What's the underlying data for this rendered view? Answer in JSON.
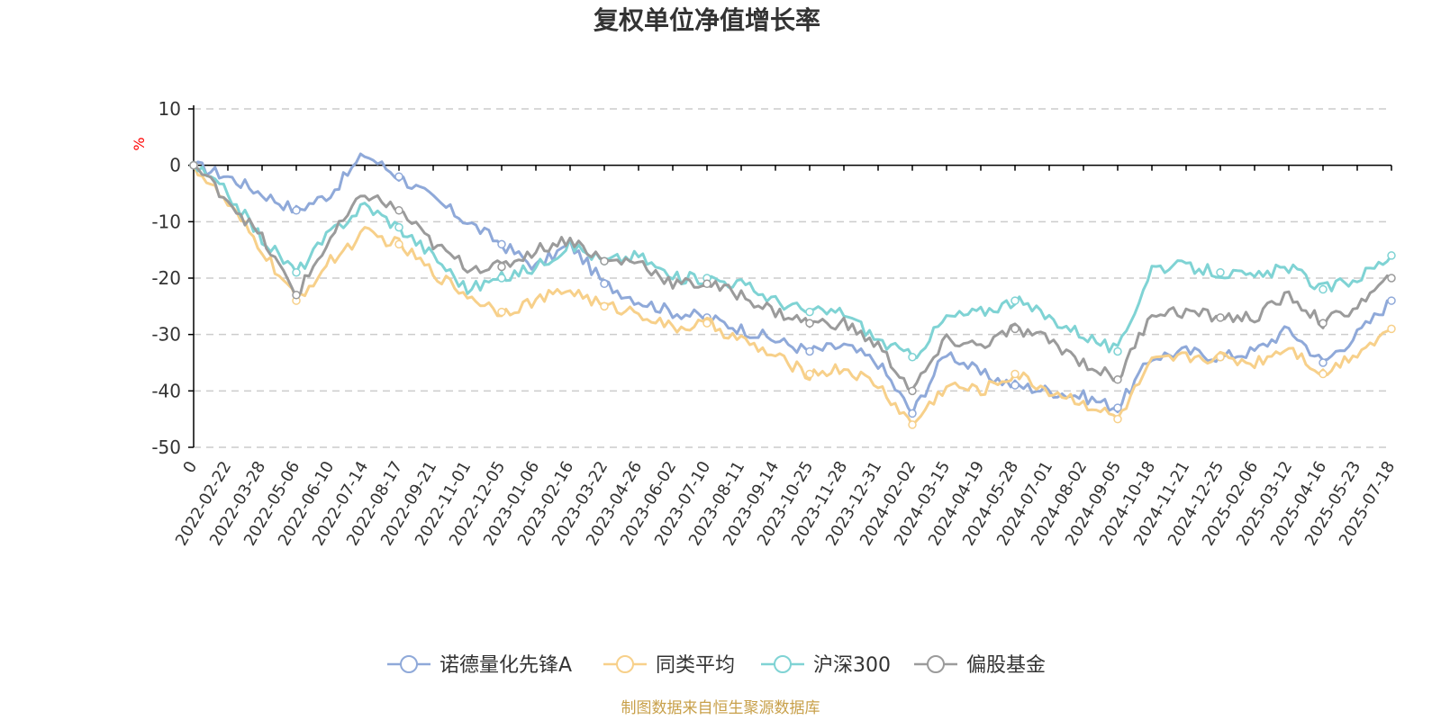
{
  "chart_data": {
    "type": "line",
    "title": "复权单位净值增长率",
    "ylabel": "%",
    "xlabel": "",
    "ylim": [
      -50,
      10
    ],
    "yticks": [
      10,
      0,
      -10,
      -20,
      -30,
      -40,
      -50
    ],
    "grid": true,
    "legend_position": "bottom",
    "source": "制图数据来自恒生聚源数据库",
    "categories": [
      "0",
      "2022-02-22",
      "2022-03-28",
      "2022-05-06",
      "2022-06-10",
      "2022-07-14",
      "2022-08-17",
      "2022-09-21",
      "2022-11-01",
      "2022-12-05",
      "2023-01-06",
      "2023-02-16",
      "2023-03-22",
      "2023-04-26",
      "2023-06-02",
      "2023-07-10",
      "2023-08-11",
      "2023-09-14",
      "2023-10-25",
      "2023-11-28",
      "2023-12-31",
      "2024-02-02",
      "2024-03-15",
      "2024-04-19",
      "2024-05-28",
      "2024-07-01",
      "2024-08-02",
      "2024-09-05",
      "2024-10-18",
      "2024-11-21",
      "2024-12-25",
      "2025-02-06",
      "2025-03-12",
      "2025-04-16",
      "2025-05-23",
      "2025-07-18"
    ],
    "series": [
      {
        "name": "诺德量化先锋A",
        "color": "#8fa9d9",
        "values": [
          0,
          -2,
          -5,
          -8,
          -5,
          2,
          -2,
          -6,
          -10,
          -14,
          -18,
          -14,
          -21,
          -24,
          -26,
          -27,
          -29,
          -31,
          -33,
          -32,
          -35,
          -44,
          -33,
          -37,
          -39,
          -40,
          -41,
          -43,
          -34,
          -33,
          -34,
          -33,
          -29,
          -35,
          -30,
          -24
        ]
      },
      {
        "name": "同类平均",
        "color": "#f7d08a",
        "values": [
          0,
          -7,
          -15,
          -24,
          -17,
          -12,
          -14,
          -19,
          -23,
          -26,
          -24,
          -22,
          -25,
          -26,
          -29,
          -28,
          -31,
          -34,
          -37,
          -36,
          -39,
          -46,
          -39,
          -40,
          -37,
          -40,
          -42,
          -45,
          -35,
          -34,
          -34,
          -35,
          -32,
          -37,
          -33,
          -29
        ]
      },
      {
        "name": "沪深300",
        "color": "#7fd3d4",
        "values": [
          0,
          -5,
          -13,
          -19,
          -12,
          -7,
          -11,
          -16,
          -22,
          -20,
          -18,
          -14,
          -17,
          -16,
          -20,
          -20,
          -21,
          -24,
          -26,
          -26,
          -31,
          -34,
          -27,
          -26,
          -24,
          -27,
          -30,
          -33,
          -18,
          -18,
          -19,
          -20,
          -18,
          -22,
          -20,
          -16
        ]
      },
      {
        "name": "偏股基金",
        "color": "#9b9b9b",
        "values": [
          0,
          -6,
          -13,
          -23,
          -13,
          -5,
          -8,
          -14,
          -18,
          -18,
          -15,
          -13,
          -17,
          -17,
          -21,
          -21,
          -23,
          -26,
          -28,
          -28,
          -32,
          -40,
          -31,
          -32,
          -29,
          -31,
          -35,
          -38,
          -26,
          -26,
          -27,
          -27,
          -23,
          -28,
          -25,
          -20
        ]
      }
    ]
  }
}
